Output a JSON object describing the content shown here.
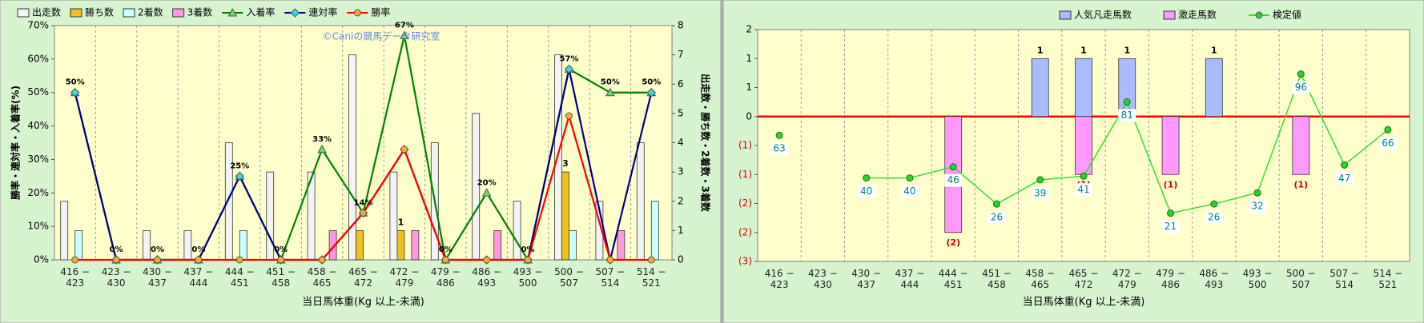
{
  "chart_data": [
    {
      "type": "bar",
      "annotation": "©Caniの競馬データ研究室",
      "xlabel": "当日馬体重(Kg  以上-未満)",
      "ylabel": "勝率・連対率・入着率(%)",
      "y2label": "出走数・勝ち数・2着数・3着数",
      "categories": [
        "416 − 423",
        "423 − 430",
        "430 − 437",
        "437 − 444",
        "444 − 451",
        "451 − 458",
        "458 − 465",
        "465 − 472",
        "472 − 479",
        "479 − 486",
        "486 − 493",
        "493 − 500",
        "500 − 507",
        "507 − 514",
        "514 − 521"
      ],
      "ylim": [
        0,
        70
      ],
      "yticks": [
        {
          "value": 0,
          "label": "0%"
        },
        {
          "value": 10,
          "label": "10%"
        },
        {
          "value": 20,
          "label": "20%"
        },
        {
          "value": 30,
          "label": "30%"
        },
        {
          "value": 40,
          "label": "40%"
        },
        {
          "value": 50,
          "label": "50%"
        },
        {
          "value": 60,
          "label": "60%"
        },
        {
          "value": 70,
          "label": "70%"
        }
      ],
      "y2lim": [
        0,
        8
      ],
      "y2ticks": [
        0,
        1,
        2,
        3,
        4,
        5,
        6,
        7,
        8
      ],
      "series": [
        {
          "name": "出走数",
          "type": "bar",
          "axis": "y2",
          "color": "#f4f4f4",
          "values": [
            2,
            0,
            1,
            1,
            4,
            3,
            3,
            7,
            3,
            4,
            5,
            2,
            7,
            2,
            4
          ]
        },
        {
          "name": "勝ち数",
          "type": "bar",
          "axis": "y2",
          "color": "#f0c020",
          "values": [
            0,
            0,
            0,
            0,
            0,
            0,
            0,
            1,
            1,
            0,
            0,
            0,
            3,
            0,
            0
          ],
          "value_labels": [
            null,
            null,
            null,
            null,
            null,
            null,
            null,
            null,
            "1",
            null,
            null,
            null,
            "3",
            null,
            null
          ]
        },
        {
          "name": "2着数",
          "type": "bar",
          "axis": "y2",
          "color": "#ccffff",
          "values": [
            1,
            0,
            0,
            0,
            1,
            0,
            0,
            0,
            0,
            0,
            0,
            0,
            1,
            0,
            2
          ]
        },
        {
          "name": "3着数",
          "type": "bar",
          "axis": "y2",
          "color": "#ff99dd",
          "values": [
            0,
            0,
            0,
            0,
            0,
            0,
            1,
            0,
            1,
            0,
            1,
            0,
            0,
            1,
            0
          ]
        },
        {
          "name": "入着率",
          "type": "line",
          "color": "#008000",
          "marker": "triangle",
          "marker_color": "#66dd66",
          "values": [
            50,
            0,
            0,
            0,
            25,
            0,
            33,
            14,
            67,
            0,
            20,
            0,
            57,
            50,
            50
          ],
          "value_labels": [
            "50%",
            "0%",
            "0%",
            "0%",
            "25%",
            "0%",
            "33%",
            "14%",
            "67%",
            "0%",
            "20%",
            "0%",
            "57%",
            "50%",
            "50%"
          ]
        },
        {
          "name": "連対率",
          "type": "line",
          "color": "#000080",
          "marker": "diamond",
          "marker_color": "#33dddd",
          "values": [
            50,
            0,
            0,
            0,
            25,
            0,
            0,
            14,
            33,
            0,
            0,
            0,
            57,
            0,
            50
          ]
        },
        {
          "name": "勝率",
          "type": "line",
          "color": "#ff0000",
          "marker": "circle",
          "marker_color": "#ffaa33",
          "values": [
            0,
            0,
            0,
            0,
            0,
            0,
            0,
            14,
            33,
            0,
            0,
            0,
            43,
            0,
            0
          ]
        }
      ]
    },
    {
      "type": "bar",
      "xlabel": "当日馬体重(Kg  以上-未満)",
      "categories": [
        "416 − 423",
        "423 − 430",
        "430 − 437",
        "437 − 444",
        "444 − 451",
        "451 − 458",
        "458 − 465",
        "465 − 472",
        "472 − 479",
        "479 − 486",
        "486 − 493",
        "493 − 500",
        "500 − 507",
        "507 − 514",
        "514 − 521"
      ],
      "ylim": [
        -2.5,
        1.5
      ],
      "yticks": [
        {
          "value": 1.5,
          "label": "2"
        },
        1,
        {
          "value": 0.5,
          "label": "1"
        },
        0,
        {
          "value": -0.5,
          "label": "(1)"
        },
        {
          "value": -1,
          "label": "(1)"
        },
        {
          "value": -1.5,
          "label": "(2)"
        },
        {
          "value": -2,
          "label": "(2)"
        },
        {
          "value": -2.5,
          "label": "(3)"
        }
      ],
      "y2lim": [
        -5,
        120
      ],
      "series": [
        {
          "name": "人気凡走馬数",
          "type": "bar",
          "color": "#aabbff",
          "values": [
            0,
            0,
            0,
            0,
            0,
            0,
            1,
            1,
            1,
            0,
            1,
            0,
            0,
            0,
            0
          ],
          "value_labels": [
            null,
            null,
            null,
            null,
            null,
            null,
            "1",
            "1",
            "1",
            null,
            "1",
            null,
            null,
            null,
            null
          ]
        },
        {
          "name": "激走馬数",
          "type": "bar",
          "color": "#ff99ff",
          "values": [
            0,
            0,
            0,
            0,
            -2,
            0,
            0,
            -1,
            0,
            -1,
            0,
            0,
            -1,
            0,
            0
          ],
          "value_labels": [
            null,
            null,
            null,
            null,
            "(2)",
            null,
            null,
            "(1)",
            null,
            "(1)",
            null,
            null,
            "(1)",
            null,
            null
          ]
        },
        {
          "name": "検定値",
          "type": "line",
          "axis": "y2",
          "color": "#33dd33",
          "marker": "circle",
          "marker_color": "#33cc33",
          "data_labels": true,
          "values": [
            63,
            null,
            40,
            40,
            46,
            26,
            39,
            41,
            81,
            21,
            26,
            32,
            96,
            47,
            66
          ]
        }
      ]
    }
  ]
}
